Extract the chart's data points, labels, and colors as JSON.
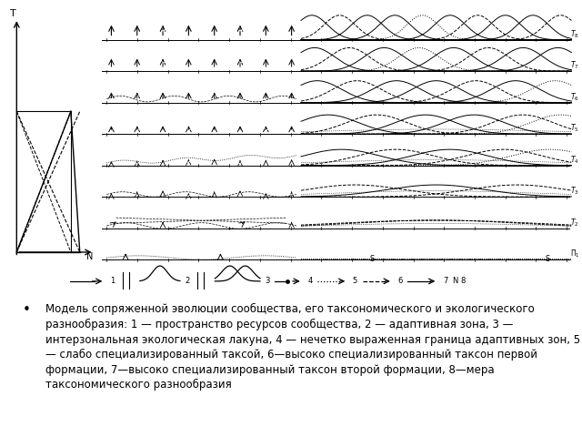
{
  "background_color": "#ffffff",
  "caption_text": "Модель сопряженной эволюции сообщества, его таксономического и экологического разнообразия: 1 — пространство ресурсов сообщества, 2 — адаптивная зона, 3 — интерзональная экологическая лакуна, 4 — нечетко выраженная граница адаптивных зон, 5 — слабо специализированный таксой, 6—высоко специализированный таксон первой формации, 7—высоко специализированный таксон второй формации, 8—мера таксономического разнообразия",
  "caption_fontsize": 8.5,
  "time_labels": [
    "Π1",
    "T2",
    "T3",
    "T4",
    "T5",
    "T6",
    "T7",
    "T8"
  ],
  "n_rows": 8
}
